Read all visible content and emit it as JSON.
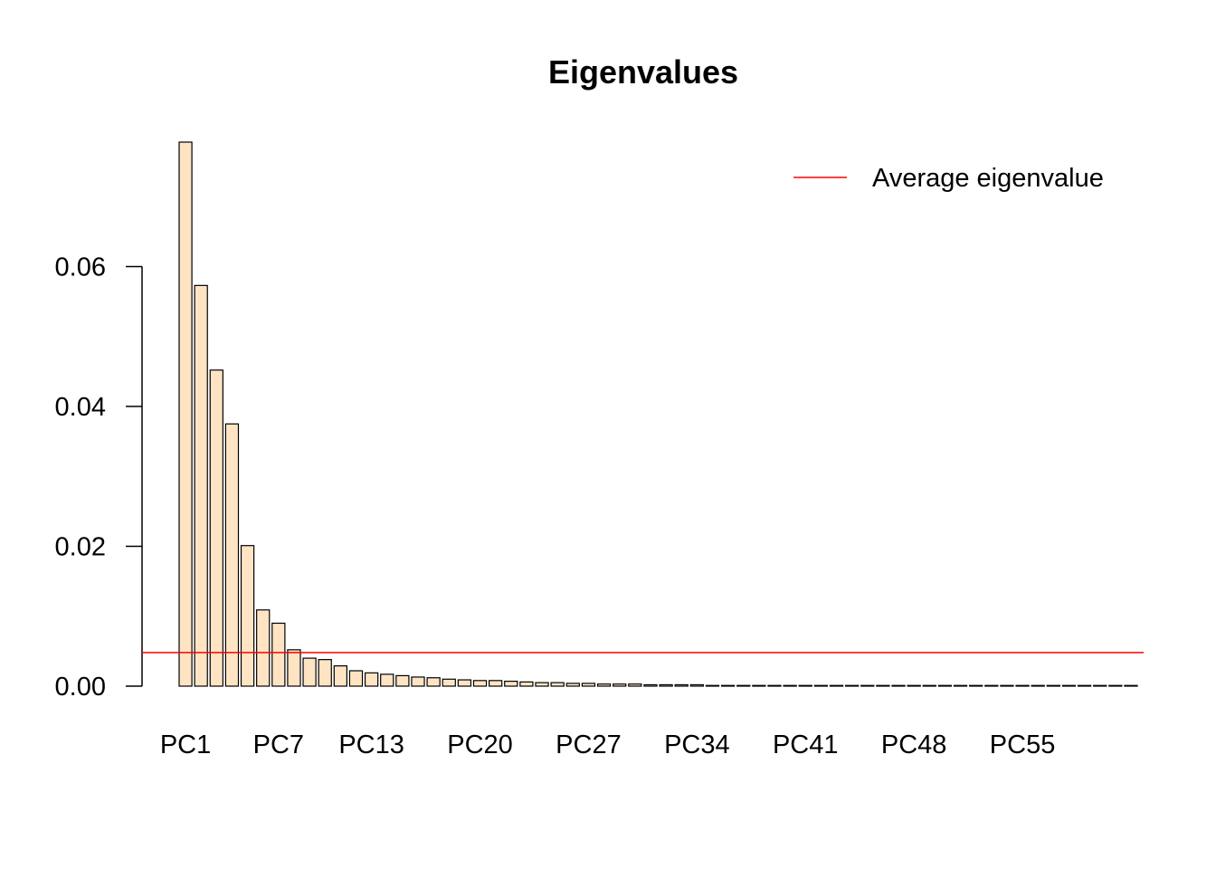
{
  "chart_data": {
    "type": "bar",
    "title": "Eigenvalues",
    "xlabel": "",
    "ylabel": "",
    "categories": [
      "PC1",
      "PC2",
      "PC3",
      "PC4",
      "PC5",
      "PC6",
      "PC7",
      "PC8",
      "PC9",
      "PC10",
      "PC11",
      "PC12",
      "PC13",
      "PC14",
      "PC15",
      "PC16",
      "PC17",
      "PC18",
      "PC19",
      "PC20",
      "PC21",
      "PC22",
      "PC23",
      "PC24",
      "PC25",
      "PC26",
      "PC27",
      "PC28",
      "PC29",
      "PC30",
      "PC31",
      "PC32",
      "PC33",
      "PC34",
      "PC35",
      "PC36",
      "PC37",
      "PC38",
      "PC39",
      "PC40",
      "PC41",
      "PC42",
      "PC43",
      "PC44",
      "PC45",
      "PC46",
      "PC47",
      "PC48",
      "PC49",
      "PC50",
      "PC51",
      "PC52",
      "PC53",
      "PC54",
      "PC55",
      "PC56",
      "PC57",
      "PC58",
      "PC59",
      "PC60",
      "PC61",
      "PC62"
    ],
    "x_tick_labels": [
      "PC1",
      "PC7",
      "PC13",
      "PC20",
      "PC27",
      "PC34",
      "PC41",
      "PC48",
      "PC55"
    ],
    "values": [
      0.0778,
      0.0573,
      0.0452,
      0.0375,
      0.0201,
      0.0109,
      0.009,
      0.0052,
      0.004,
      0.0038,
      0.0029,
      0.0022,
      0.0019,
      0.0017,
      0.0015,
      0.0013,
      0.0012,
      0.001,
      0.0009,
      0.0008,
      0.0008,
      0.0007,
      0.0006,
      0.0005,
      0.0005,
      0.0004,
      0.0004,
      0.0003,
      0.0003,
      0.0003,
      0.0002,
      0.0002,
      0.0002,
      0.0002,
      0.0001,
      0.0001,
      0.0001,
      0.0001,
      0.0001,
      0.0001,
      0.0001,
      0.0001,
      0.0001,
      0.0001,
      0.0001,
      0.0001,
      0.0001,
      0.0001,
      0.0001,
      0.0001,
      0.0001,
      0.0001,
      0.0001,
      0.0001,
      0.0001,
      0.0001,
      0.0001,
      0.0001,
      0.0001,
      0.0001,
      0.0001,
      0.0001
    ],
    "yticks": [
      0,
      0.02,
      0.04,
      0.06
    ],
    "ytick_labels": [
      "0.00",
      "0.02",
      "0.04",
      "0.06"
    ],
    "ylim": [
      0,
      0.0778
    ],
    "bar_color": "#ffe4c4",
    "average_eigenvalue": 0.0048,
    "average_line_color": "#ff0000",
    "legend": {
      "label": "Average eigenvalue",
      "position": "top-right"
    },
    "grid": false
  }
}
